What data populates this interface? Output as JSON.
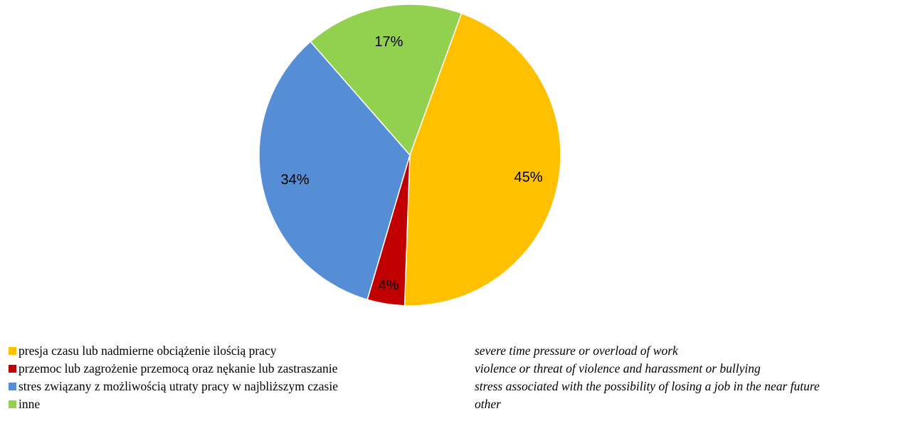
{
  "chart_data": {
    "type": "pie",
    "title": "",
    "start_angle_deg": 20,
    "direction": "clockwise",
    "slices": [
      {
        "label": "presja czasu lub nadmierne obciążenie ilością pracy",
        "value": 45,
        "display": "45%",
        "color": "#FFC000"
      },
      {
        "label": "przemoc lub zagrożenie przemocą oraz nękanie lub zastraszanie",
        "value": 4,
        "display": "4%",
        "color": "#C00000"
      },
      {
        "label": "stres związany z możliwością utraty pracy w najbliższym czasie",
        "value": 34,
        "display": "34%",
        "color": "#558ED5"
      },
      {
        "label": "inne",
        "value": 17,
        "display": "17%",
        "color": "#92D050"
      }
    ],
    "legend_position": "bottom-left"
  },
  "legend": {
    "items": [
      {
        "label": "presja czasu lub nadmierne obciążenie ilością pracy",
        "color": "#FFC000"
      },
      {
        "label": "przemoc lub zagrożenie przemocą oraz nękanie lub zastraszanie",
        "color": "#C00000"
      },
      {
        "label": "stres związany z możliwością utraty pracy w najbliższym czasie",
        "color": "#558ED5"
      },
      {
        "label": "inne",
        "color": "#92D050"
      }
    ]
  },
  "translations": {
    "items": [
      "severe time pressure or overload of work",
      "violence or threat of violence and harassment or bullying",
      "stress associated with the possibility of losing a job in the near future",
      "other"
    ]
  }
}
